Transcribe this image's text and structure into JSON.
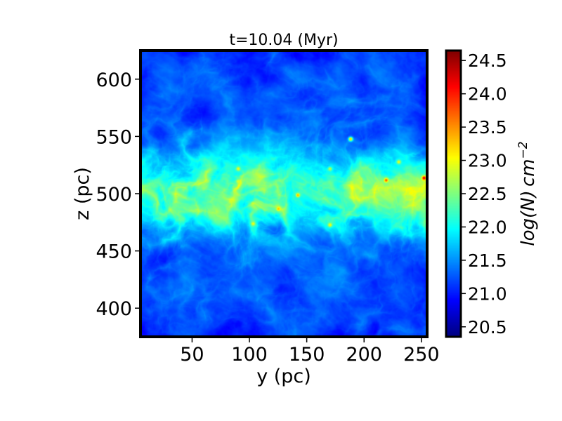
{
  "chart_data": {
    "type": "heatmap",
    "title": "t=10.04 (Myr)",
    "xlabel": "y (pc)",
    "ylabel": "z (pc)",
    "xlim": [
      5,
      255
    ],
    "ylim": [
      375,
      625
    ],
    "xticks": [
      50,
      100,
      150,
      200,
      250
    ],
    "yticks": [
      400,
      450,
      500,
      550,
      600
    ],
    "colorbar": {
      "label": "log(N) cm⁻²",
      "label_base": "log(N) cm",
      "label_sup": "−2",
      "range": [
        20.35,
        24.65
      ],
      "ticks": [
        20.5,
        21.0,
        21.5,
        22.0,
        22.5,
        23.0,
        23.5,
        24.0,
        24.5
      ],
      "tick_labels": [
        "20.5",
        "21.0",
        "21.5",
        "22.0",
        "22.5",
        "23.0",
        "23.5",
        "24.0",
        "24.5"
      ],
      "colormap": "jet"
    },
    "field_description": "column density map with dense filamentary band centred near z=500 pc",
    "band_center_z": 500,
    "band_halfwidth_z": 35,
    "dense_cores": [
      {
        "y": 90,
        "z": 522,
        "v": 23.0
      },
      {
        "y": 90,
        "z": 511,
        "v": 22.9
      },
      {
        "y": 125,
        "z": 487,
        "v": 23.3
      },
      {
        "y": 142,
        "z": 499,
        "v": 23.4
      },
      {
        "y": 170,
        "z": 522,
        "v": 22.8
      },
      {
        "y": 170,
        "z": 473,
        "v": 23.1
      },
      {
        "y": 188,
        "z": 548,
        "v": 23.3
      },
      {
        "y": 219,
        "z": 512,
        "v": 23.8
      },
      {
        "y": 230,
        "z": 528,
        "v": 23.0
      },
      {
        "y": 252,
        "z": 514,
        "v": 24.3
      },
      {
        "y": 103,
        "z": 474,
        "v": 23.0
      },
      {
        "y": 60,
        "z": 505,
        "v": 22.6
      }
    ]
  }
}
